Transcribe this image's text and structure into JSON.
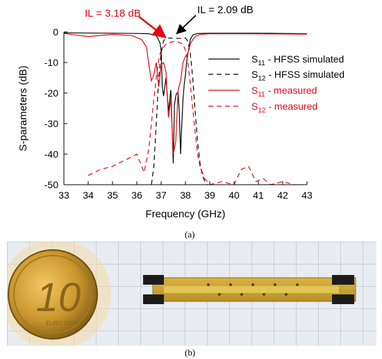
{
  "panel_a": {
    "label": "(a)",
    "chart_data": {
      "type": "line",
      "xlabel": "Frequency (GHz)",
      "ylabel": "S-parameters (dB)",
      "xlim": [
        33,
        43
      ],
      "ylim": [
        -50,
        0
      ],
      "x_ticks": [
        "33",
        "34",
        "35",
        "36",
        "37",
        "38",
        "39",
        "40",
        "41",
        "42",
        "43"
      ],
      "y_ticks": [
        "0",
        "-10",
        "-20",
        "-30",
        "-40",
        "-50"
      ],
      "grid": false,
      "legend_placement": "right",
      "annotations": [
        {
          "text": "IL = 2.09 dB",
          "x": 37.6,
          "y": -2.09,
          "color": "#000000"
        },
        {
          "text": "IL =  3.18 dB",
          "x": 37.45,
          "y": -3.18,
          "color": "#e30613"
        }
      ],
      "series": [
        {
          "name_base": "S",
          "name_sub": "11",
          "name_suffix": " - HFSS simulated",
          "color": "#000000",
          "dash": "solid",
          "x": [
            33,
            35,
            36,
            36.5,
            36.8,
            36.95,
            37.0,
            37.05,
            37.1,
            37.2,
            37.3,
            37.4,
            37.5,
            37.55,
            37.6,
            37.65,
            37.7,
            37.75,
            37.8,
            37.85,
            37.9,
            37.95,
            38.0,
            38.05,
            38.1,
            38.15,
            38.2,
            38.3,
            38.5,
            39,
            41,
            43
          ],
          "y": [
            -0.3,
            -0.4,
            -0.5,
            -0.6,
            -1.2,
            -3.5,
            -6,
            -18,
            -21,
            -15,
            -26,
            -19,
            -43,
            -24,
            -21,
            -20,
            -20,
            -27,
            -40,
            -30,
            -22,
            -17,
            -14,
            -10,
            -7,
            -5,
            -2.5,
            -1,
            -0.5,
            -0.4,
            -0.4,
            -0.6
          ]
        },
        {
          "name_base": "S",
          "name_sub": "12",
          "name_suffix": " - HFSS simulated",
          "color": "#000000",
          "dash": "dashed",
          "x": [
            36.6,
            36.7,
            36.8,
            36.9,
            37.0,
            37.1,
            37.2,
            37.3,
            37.5,
            37.8,
            38.0,
            38.1,
            38.2,
            38.3,
            38.4,
            38.5,
            38.6,
            38.7,
            38.8,
            38.9
          ],
          "y": [
            -50,
            -44,
            -30,
            -15,
            -7,
            -3,
            -2,
            -2,
            -2.1,
            -2.1,
            -2,
            -3,
            -7,
            -15,
            -26,
            -36,
            -43,
            -47,
            -49,
            -50
          ]
        },
        {
          "name_base": "S",
          "name_sub": "11",
          "name_suffix": " - measured",
          "color": "#e30613",
          "dash": "solid",
          "x": [
            33,
            34,
            35,
            35.8,
            36.2,
            36.4,
            36.5,
            36.6,
            36.7,
            36.8,
            36.9,
            37.0,
            37.1,
            37.2,
            37.3,
            37.4,
            37.5,
            37.6,
            37.7,
            37.8,
            37.9,
            38.0,
            38.1,
            38.2,
            38.3,
            38.4,
            38.6,
            39,
            40,
            43
          ],
          "y": [
            -0.5,
            -1.5,
            -0.8,
            -1.2,
            -2.5,
            -5,
            -11,
            -16,
            -14,
            -10,
            -18,
            -11,
            -10,
            -13,
            -28,
            -22,
            -40,
            -36,
            -19,
            -16,
            -10,
            -8,
            -7,
            -4,
            -2.5,
            -1.5,
            -0.8,
            -0.6,
            -0.6,
            -0.7
          ]
        },
        {
          "name_base": "S",
          "name_sub": "12",
          "name_suffix": " - measured",
          "color": "#e30613",
          "dash": "dashed",
          "x": [
            34.0,
            34.5,
            35.0,
            35.5,
            36.0,
            36.3,
            36.5,
            36.6,
            36.7,
            36.8,
            36.9,
            37.0,
            37.1,
            37.2,
            37.3,
            37.5,
            37.7,
            37.9,
            38.0,
            38.1,
            38.2,
            38.3,
            38.4,
            38.5,
            38.6,
            38.8,
            39.0,
            39.5,
            40.0,
            40.3,
            40.6,
            40.9,
            41.2,
            41.5,
            42.0,
            42.5
          ],
          "y": [
            -47,
            -45,
            -44,
            -42,
            -40,
            -46,
            -38,
            -30,
            -22,
            -15,
            -9,
            -6,
            -5,
            -4,
            -3.5,
            -3.2,
            -3.3,
            -4,
            -6,
            -10,
            -17,
            -25,
            -33,
            -40,
            -44,
            -48,
            -50,
            -49,
            -50,
            -45,
            -44,
            -49,
            -48,
            -50,
            -49,
            -50
          ]
        }
      ]
    }
  },
  "panel_b": {
    "label": "(b)",
    "coin": {
      "big_digit": "10",
      "small_text": "EURO CENT"
    }
  }
}
